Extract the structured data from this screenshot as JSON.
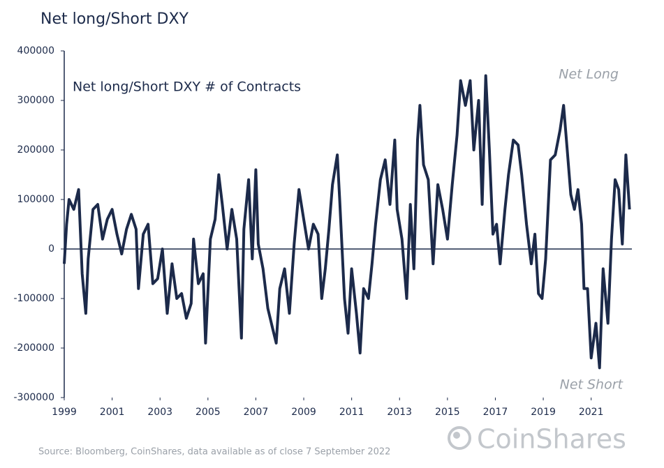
{
  "chart_data": {
    "type": "line",
    "title": "Net long/Short DXY",
    "annotations": [
      "Net long/Short DXY # of Contracts",
      "Net Long",
      "Net Short"
    ],
    "source": "Source: Bloomberg, CoinShares, data available as of close 7 September 2022",
    "brand": "CoinShares",
    "x": [
      1999.0,
      1999.1,
      1999.2,
      1999.4,
      1999.6,
      1999.75,
      1999.9,
      2000.0,
      2000.2,
      2000.4,
      2000.6,
      2000.8,
      2001.0,
      2001.2,
      2001.4,
      2001.6,
      2001.8,
      2002.0,
      2002.1,
      2002.3,
      2002.5,
      2002.7,
      2002.9,
      2003.1,
      2003.3,
      2003.5,
      2003.7,
      2003.9,
      2004.1,
      2004.3,
      2004.4,
      2004.6,
      2004.8,
      2004.9,
      2005.1,
      2005.3,
      2005.45,
      2005.6,
      2005.8,
      2006.0,
      2006.2,
      2006.4,
      2006.5,
      2006.7,
      2006.85,
      2007.0,
      2007.1,
      2007.3,
      2007.5,
      2007.7,
      2007.85,
      2008.0,
      2008.2,
      2008.4,
      2008.6,
      2008.8,
      2009.0,
      2009.2,
      2009.4,
      2009.6,
      2009.75,
      2009.9,
      2010.05,
      2010.2,
      2010.4,
      2010.5,
      2010.7,
      2010.85,
      2011.0,
      2011.2,
      2011.35,
      2011.5,
      2011.7,
      2011.85,
      2012.0,
      2012.2,
      2012.4,
      2012.6,
      2012.8,
      2012.9,
      2013.1,
      2013.3,
      2013.45,
      2013.6,
      2013.75,
      2013.85,
      2014.0,
      2014.2,
      2014.4,
      2014.6,
      2014.8,
      2015.0,
      2015.2,
      2015.4,
      2015.55,
      2015.75,
      2015.95,
      2016.1,
      2016.3,
      2016.45,
      2016.6,
      2016.75,
      2016.9,
      2017.05,
      2017.2,
      2017.4,
      2017.55,
      2017.75,
      2017.95,
      2018.1,
      2018.3,
      2018.5,
      2018.65,
      2018.8,
      2018.95,
      2019.1,
      2019.3,
      2019.5,
      2019.7,
      2019.85,
      2020.0,
      2020.15,
      2020.3,
      2020.45,
      2020.6,
      2020.7,
      2020.85,
      2021.0,
      2021.2,
      2021.35,
      2021.5,
      2021.7,
      2021.85,
      2022.0,
      2022.15,
      2022.3,
      2022.45,
      2022.6
    ],
    "series": [
      {
        "name": "Net long/Short DXY",
        "color": "#1c2a4a",
        "values": [
          -30000,
          50000,
          100000,
          80000,
          120000,
          -50000,
          -130000,
          -20000,
          80000,
          90000,
          20000,
          60000,
          80000,
          30000,
          -10000,
          40000,
          70000,
          40000,
          -80000,
          30000,
          50000,
          -70000,
          -60000,
          0,
          -130000,
          -30000,
          -100000,
          -90000,
          -140000,
          -110000,
          20000,
          -70000,
          -50000,
          -190000,
          20000,
          60000,
          150000,
          90000,
          0,
          80000,
          20000,
          -180000,
          40000,
          140000,
          -20000,
          160000,
          10000,
          -40000,
          -120000,
          -160000,
          -190000,
          -80000,
          -40000,
          -130000,
          10000,
          120000,
          60000,
          0,
          50000,
          30000,
          -100000,
          -40000,
          40000,
          130000,
          190000,
          100000,
          -100000,
          -170000,
          -40000,
          -130000,
          -210000,
          -80000,
          -100000,
          -30000,
          50000,
          140000,
          180000,
          90000,
          220000,
          80000,
          20000,
          -100000,
          90000,
          -40000,
          220000,
          290000,
          170000,
          140000,
          -30000,
          130000,
          80000,
          20000,
          130000,
          230000,
          340000,
          290000,
          340000,
          200000,
          300000,
          90000,
          350000,
          200000,
          30000,
          50000,
          -30000,
          80000,
          150000,
          220000,
          210000,
          150000,
          50000,
          -30000,
          30000,
          -90000,
          -100000,
          -20000,
          180000,
          190000,
          240000,
          290000,
          200000,
          110000,
          80000,
          120000,
          50000,
          -80000,
          -80000,
          -220000,
          -150000,
          -240000,
          -40000,
          -150000,
          20000,
          140000,
          120000,
          10000,
          190000,
          80000
        ]
      }
    ],
    "xlim": [
      1999,
      2022.7
    ],
    "xticks": [
      1999,
      2001,
      2003,
      2005,
      2007,
      2009,
      2011,
      2013,
      2015,
      2017,
      2019,
      2021
    ],
    "ylim": [
      -300000,
      400000
    ],
    "yticks": [
      400000,
      300000,
      200000,
      100000,
      0,
      -100000,
      -200000,
      -300000
    ],
    "grid": false
  }
}
